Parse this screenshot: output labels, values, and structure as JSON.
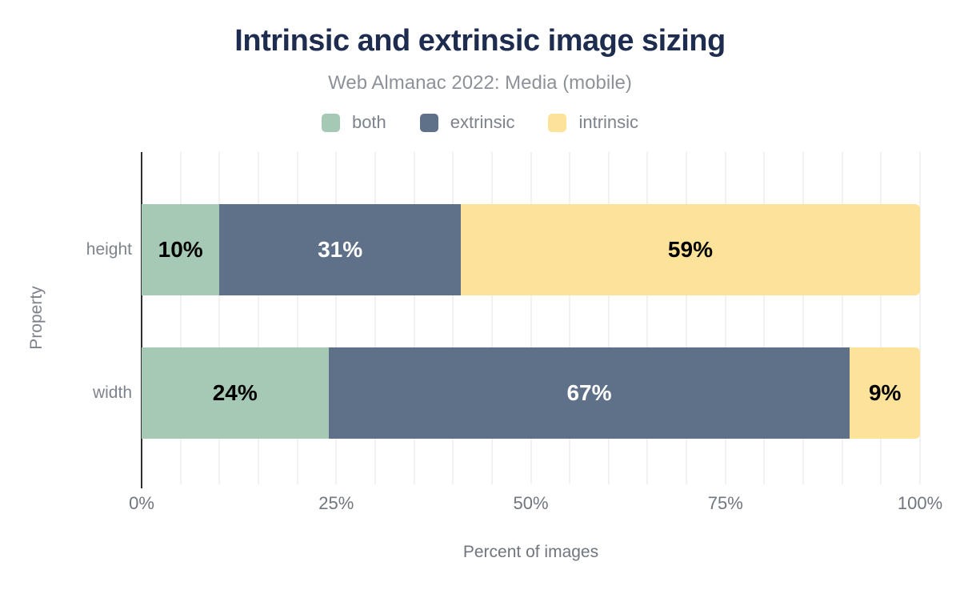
{
  "chart_data": {
    "type": "bar",
    "orientation": "horizontal",
    "stacked": true,
    "title": "Intrinsic and extrinsic image sizing",
    "subtitle": "Web Almanac 2022: Media (mobile)",
    "xlabel": "Percent of images",
    "ylabel": "Property",
    "categories": [
      "height",
      "width"
    ],
    "series": [
      {
        "name": "both",
        "color": "#a6c9b5",
        "label_color": "#000000",
        "values": [
          10,
          24
        ]
      },
      {
        "name": "extrinsic",
        "color": "#5f7089",
        "label_color": "#ffffff",
        "values": [
          31,
          67
        ]
      },
      {
        "name": "intrinsic",
        "color": "#fde299",
        "label_color": "#000000",
        "values": [
          59,
          9
        ]
      }
    ],
    "data_label_suffix": "%",
    "xlim": [
      0,
      100
    ],
    "x_ticks": [
      {
        "value": 0,
        "label": "0%"
      },
      {
        "value": 25,
        "label": "25%"
      },
      {
        "value": 50,
        "label": "50%"
      },
      {
        "value": 75,
        "label": "75%"
      },
      {
        "value": 100,
        "label": "100%"
      }
    ],
    "grid": {
      "show": true,
      "interval": 5,
      "color": "#f1f1f1"
    },
    "legend_position": "top",
    "colors": {
      "title": "#1e2d4f",
      "subtitle": "#8d929a",
      "axis_text": "#70767f",
      "category_text": "#7d838c",
      "axis_line": "#2e2e2e",
      "background": "#ffffff"
    }
  }
}
